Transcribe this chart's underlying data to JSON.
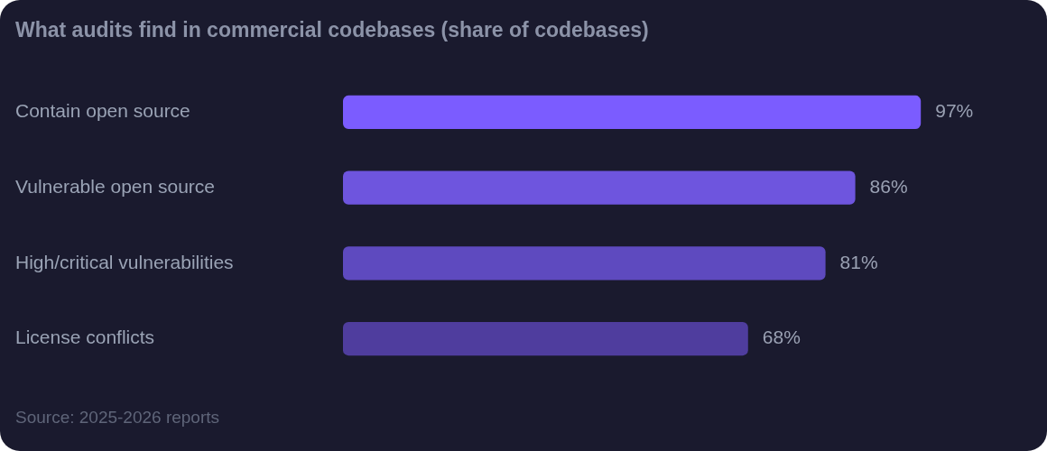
{
  "chart_data": {
    "type": "bar",
    "orientation": "horizontal",
    "title": "What audits find in commercial codebases (share of codebases)",
    "categories": [
      "Contain open source",
      "Vulnerable open source",
      "High/critical vulnerabilities",
      "License conflicts"
    ],
    "values": [
      97,
      86,
      81,
      68
    ],
    "value_labels": [
      "97%",
      "86%",
      "81%",
      "68%"
    ],
    "colors": [
      "#7b5cff",
      "#6e55de",
      "#5e4abf",
      "#4f3d9e"
    ],
    "tick_labels": "y",
    "annotations": [
      "Source: 2025-2026 reports"
    ]
  }
}
